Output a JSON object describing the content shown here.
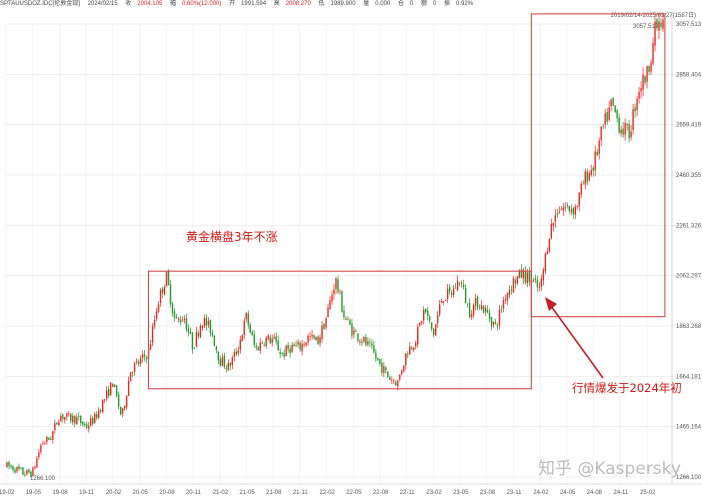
{
  "header": {
    "symbol": "SPTAUUSDOZ.IDC[伦敦金现]",
    "date": "2024/02/15",
    "close_label": "收",
    "close": "2004.105",
    "change_label": "幅",
    "change": "0.60%(12.000)",
    "open_label": "开",
    "open": "1991.594",
    "high_label": "高",
    "high": "2008.270",
    "low_label": "低",
    "low": "1989.900",
    "volume_label": "量",
    "volume": "0.000",
    "amount_label": "仓",
    "amount": "0",
    "turnover_label": "额",
    "turnover": "0",
    "amplitude_label": "振",
    "amplitude": "0.92%"
  },
  "range_label": "2019/02/14-2025/03/27(1587日)",
  "annotations": {
    "sideways": "黄金横盘3年不涨",
    "breakout": "行情爆发于2024年初"
  },
  "watermark": "知乎 @Kaspersky",
  "colors": {
    "up": "#e8281e",
    "down": "#1f9a2a",
    "box": "#d24a4a",
    "arrow": "#c81e28",
    "grid": "#e6e6e6"
  },
  "chart_data": {
    "type": "candlestick",
    "x_ticks": [
      "19-02",
      "19-05",
      "19-08",
      "19-11",
      "20-02",
      "20-05",
      "20-08",
      "20-11",
      "21-02",
      "21-05",
      "21-08",
      "21-11",
      "22-02",
      "22-05",
      "22-08",
      "22-11",
      "23-02",
      "23-05",
      "23-08",
      "23-11",
      "24-02",
      "24-05",
      "24-08",
      "24-11",
      "25-02"
    ],
    "y_ticks": [
      "3057.513",
      "2858.404",
      "2659.419",
      "2460.355",
      "2261.326",
      "2062.297",
      "1863.268",
      "1664.181",
      "1465.164",
      "1266.100"
    ],
    "ylim": [
      1266.1,
      3057.513
    ],
    "low_label": "1266.100",
    "high_label": "3057.513",
    "series_path": [
      [
        "2019-02",
        1310
      ],
      [
        "2019-03",
        1300
      ],
      [
        "2019-04",
        1280
      ],
      [
        "2019-05",
        1285
      ],
      [
        "2019-06",
        1400
      ],
      [
        "2019-07",
        1420
      ],
      [
        "2019-08",
        1510
      ],
      [
        "2019-09",
        1500
      ],
      [
        "2019-10",
        1495
      ],
      [
        "2019-11",
        1465
      ],
      [
        "2019-12",
        1500
      ],
      [
        "2020-01",
        1570
      ],
      [
        "2020-02",
        1640
      ],
      [
        "2020-03",
        1500
      ],
      [
        "2020-04",
        1690
      ],
      [
        "2020-05",
        1720
      ],
      [
        "2020-06",
        1760
      ],
      [
        "2020-07",
        1950
      ],
      [
        "2020-08",
        2060
      ],
      [
        "2020-09",
        1880
      ],
      [
        "2020-10",
        1900
      ],
      [
        "2020-11",
        1780
      ],
      [
        "2020-12",
        1890
      ],
      [
        "2021-01",
        1850
      ],
      [
        "2021-02",
        1730
      ],
      [
        "2021-03",
        1700
      ],
      [
        "2021-04",
        1770
      ],
      [
        "2021-05",
        1900
      ],
      [
        "2021-06",
        1770
      ],
      [
        "2021-07",
        1810
      ],
      [
        "2021-08",
        1810
      ],
      [
        "2021-09",
        1750
      ],
      [
        "2021-10",
        1780
      ],
      [
        "2021-11",
        1780
      ],
      [
        "2021-12",
        1820
      ],
      [
        "2022-01",
        1800
      ],
      [
        "2022-02",
        1900
      ],
      [
        "2022-03",
        2050
      ],
      [
        "2022-04",
        1900
      ],
      [
        "2022-05",
        1840
      ],
      [
        "2022-06",
        1810
      ],
      [
        "2022-07",
        1770
      ],
      [
        "2022-08",
        1710
      ],
      [
        "2022-09",
        1660
      ],
      [
        "2022-10",
        1640
      ],
      [
        "2022-11",
        1760
      ],
      [
        "2022-12",
        1810
      ],
      [
        "2023-01",
        1930
      ],
      [
        "2023-02",
        1830
      ],
      [
        "2023-03",
        1980
      ],
      [
        "2023-04",
        1990
      ],
      [
        "2023-05",
        2050
      ],
      [
        "2023-06",
        1920
      ],
      [
        "2023-07",
        1960
      ],
      [
        "2023-08",
        1915
      ],
      [
        "2023-09",
        1860
      ],
      [
        "2023-10",
        1980
      ],
      [
        "2023-11",
        2040
      ],
      [
        "2023-12",
        2070
      ],
      [
        "2024-01",
        2040
      ],
      [
        "2024-02",
        2004
      ],
      [
        "2024-03",
        2230
      ],
      [
        "2024-04",
        2330
      ],
      [
        "2024-05",
        2330
      ],
      [
        "2024-06",
        2330
      ],
      [
        "2024-07",
        2445
      ],
      [
        "2024-08",
        2500
      ],
      [
        "2024-09",
        2640
      ],
      [
        "2024-10",
        2740
      ],
      [
        "2024-11",
        2650
      ],
      [
        "2024-12",
        2625
      ],
      [
        "2025-01",
        2800
      ],
      [
        "2025-02",
        2860
      ],
      [
        "2025-03",
        3050
      ]
    ],
    "highlight_boxes": [
      {
        "label": "黄金横盘3年不涨",
        "from": "2020-06",
        "to": "2023-12",
        "low": 1615,
        "high": 2080
      },
      {
        "label": "行情爆发于2024年初",
        "from": "2024-01",
        "to": "2025-03",
        "low": 1900,
        "high": 3100
      }
    ],
    "grid": true,
    "legend": "none"
  }
}
